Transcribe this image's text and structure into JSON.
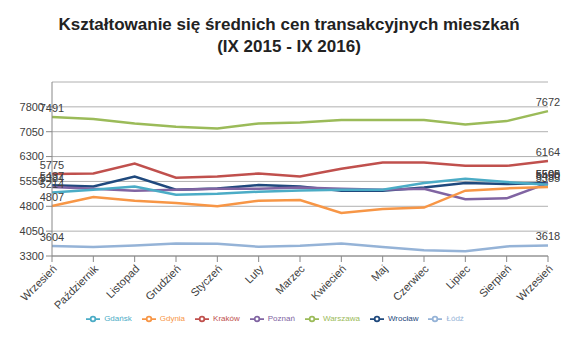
{
  "chart_data": {
    "type": "line",
    "title": "Kształtowanie się średnich cen transakcyjnych mieszkań\n(IX 2015 - IX 2016)",
    "categories": [
      "Wrzesień",
      "Październik",
      "Listopad",
      "Grudzień",
      "Styczeń",
      "Luty",
      "Marzec",
      "Kwiecień",
      "Maj",
      "Czerwiec",
      "Lipiec",
      "Sierpień",
      "Wrzesień"
    ],
    "ylim": [
      3300,
      8550
    ],
    "yticks": [
      3300,
      4050,
      4800,
      5550,
      6300,
      7050,
      7800
    ],
    "grid": true,
    "legend": "bottom",
    "series": [
      {
        "name": "Wrocław",
        "color": "#1f497d",
        "values": [
          5437,
          5400,
          5700,
          5300,
          5340,
          5440,
          5400,
          5270,
          5270,
          5370,
          5500,
          5470,
          5505
        ],
        "value_labels": [
          "5437",
          null,
          null,
          null,
          null,
          null,
          null,
          null,
          null,
          null,
          null,
          null,
          "5505"
        ]
      },
      {
        "name": "Kraków",
        "color": "#c0504d",
        "values": [
          5775,
          5790,
          6090,
          5660,
          5700,
          5790,
          5700,
          5930,
          6120,
          6120,
          6020,
          6020,
          6164
        ],
        "value_labels": [
          "5775",
          null,
          null,
          null,
          null,
          null,
          null,
          null,
          null,
          null,
          null,
          null,
          "6164"
        ]
      },
      {
        "name": "Warszawa",
        "color": "#9bbb59",
        "values": [
          7491,
          7430,
          7300,
          7200,
          7150,
          7300,
          7330,
          7400,
          7400,
          7400,
          7270,
          7370,
          7672
        ],
        "value_labels": [
          "7491",
          null,
          null,
          null,
          null,
          null,
          null,
          null,
          null,
          null,
          null,
          null,
          "7672"
        ]
      },
      {
        "name": "Poznań",
        "color": "#8064a2",
        "values": [
          5384,
          5330,
          5270,
          5300,
          5330,
          5330,
          5370,
          5330,
          5300,
          5330,
          5010,
          5040,
          5500
        ],
        "value_labels": [
          "5384",
          null,
          null,
          null,
          null,
          null,
          null,
          null,
          null,
          null,
          null,
          null,
          "5500"
        ]
      },
      {
        "name": "Gdańsk",
        "color": "#4bacc6",
        "values": [
          5214,
          5300,
          5400,
          5150,
          5180,
          5240,
          5280,
          5300,
          5300,
          5500,
          5630,
          5530,
          5450
        ],
        "value_labels": [
          "5214",
          null,
          null,
          null,
          null,
          null,
          null,
          null,
          null,
          null,
          null,
          null,
          "5450"
        ]
      },
      {
        "name": "Gdynia",
        "color": "#f79646",
        "values": [
          4807,
          5080,
          4970,
          4900,
          4800,
          4970,
          4990,
          4600,
          4720,
          4760,
          5270,
          5340,
          5385
        ],
        "value_labels": [
          "4807",
          null,
          null,
          null,
          null,
          null,
          null,
          null,
          null,
          null,
          null,
          null,
          "5385"
        ]
      },
      {
        "name": "Łódź",
        "color": "#95b3d7",
        "values": [
          3604,
          3570,
          3620,
          3680,
          3670,
          3580,
          3610,
          3680,
          3570,
          3470,
          3440,
          3590,
          3618
        ],
        "value_labels": [
          "3604",
          null,
          null,
          null,
          null,
          null,
          null,
          null,
          null,
          null,
          null,
          null,
          "3618"
        ]
      }
    ]
  }
}
